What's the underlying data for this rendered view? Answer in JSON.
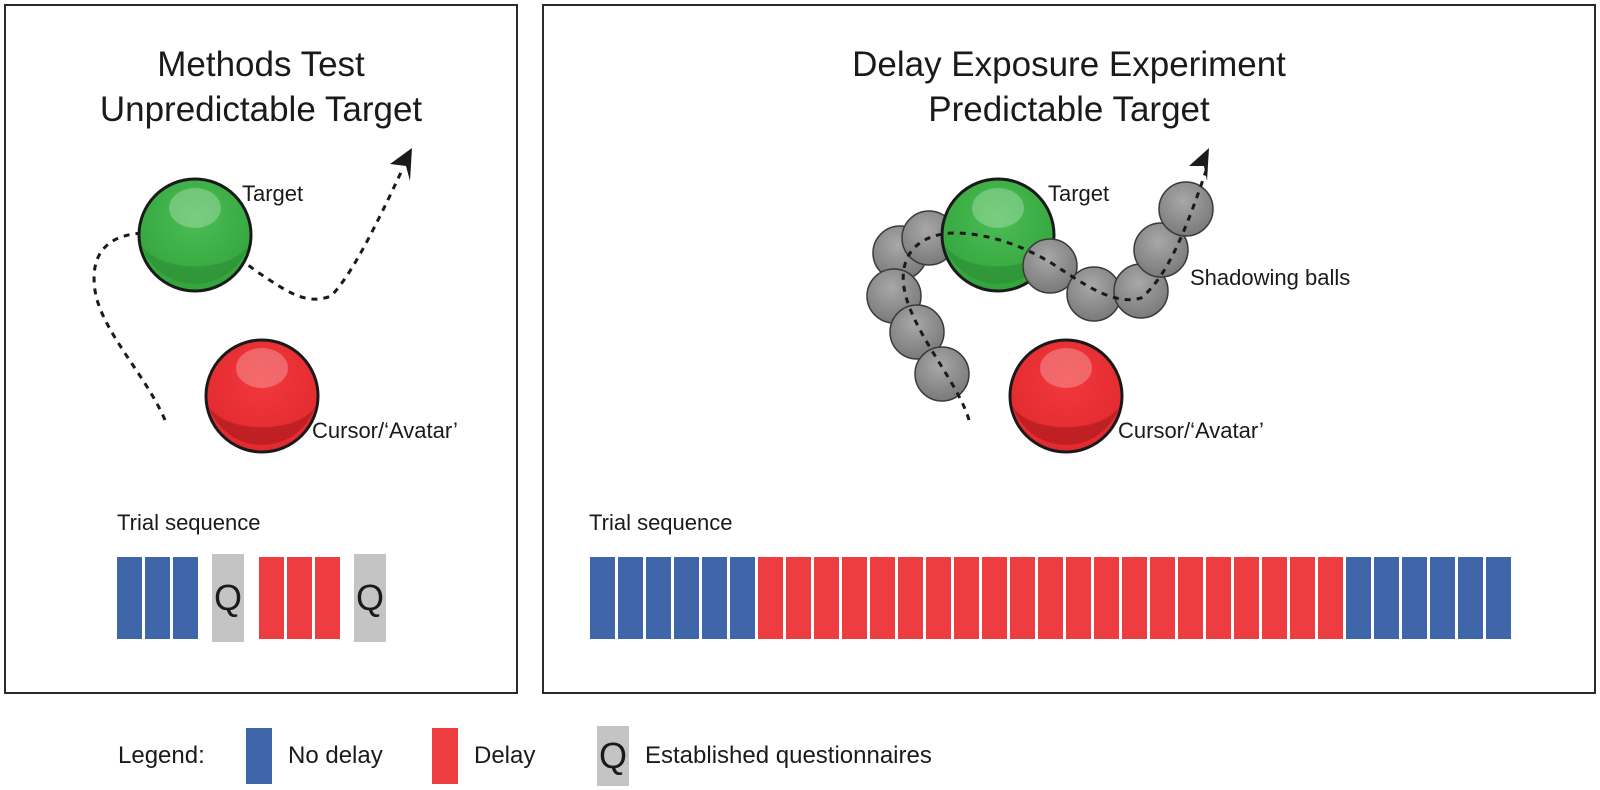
{
  "colors": {
    "no_delay": "#3f66a8",
    "delay": "#ee3d40",
    "questionnaire": "#c4c4c4",
    "target": "#3cad45",
    "cursor": "#ee2a2e",
    "shadow_ball": "#8a8a8a"
  },
  "left_panel": {
    "title_line1": "Methods Test",
    "title_line2": "Unpredictable Target",
    "target_label": "Target",
    "cursor_label": "Cursor/‘Avatar’",
    "sequence_label": "Trial sequence",
    "sequence": [
      "no_delay",
      "no_delay",
      "no_delay",
      "Q",
      "delay",
      "delay",
      "delay",
      "Q"
    ]
  },
  "right_panel": {
    "title_line1": "Delay Exposure Experiment",
    "title_line2": "Predictable Target",
    "target_label": "Target",
    "shadow_label": "Shadowing balls",
    "cursor_label": "Cursor/‘Avatar’",
    "sequence_label": "Trial sequence",
    "sequence_counts": {
      "no_delay_start": 6,
      "delay": 21,
      "no_delay_end": 6
    }
  },
  "legend": {
    "title": "Legend:",
    "no_delay": "No delay",
    "delay": "Delay",
    "q_glyph": "Q",
    "questionnaire": "Established questionnaires"
  }
}
